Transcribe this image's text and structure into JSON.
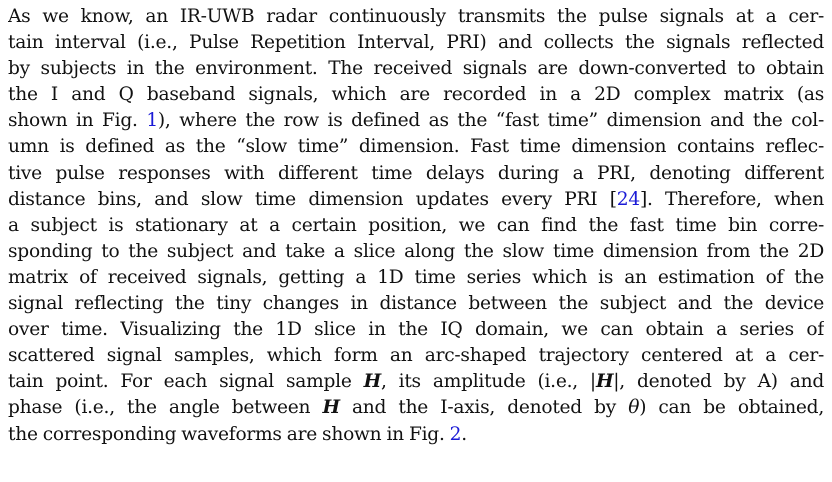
{
  "paragraph": {
    "l1": "As we know, an IR-UWB radar continuously transmits the pulse signals at a cer-",
    "l2": "tain interval (i.e., Pulse Repetition Interval, PRI) and collects the signals reflected",
    "l3": "by subjects in the environment. The received signals are down-converted to obtain",
    "l4": "the I and Q baseband signals, which are recorded in a 2D complex matrix (as",
    "l5a": "shown in Fig. ",
    "l5_ref": "1",
    "l5b": "), where the row is defined as the “fast time” dimension and the col-",
    "l6": "umn is defined as the “slow time” dimension. Fast time dimension contains reflec-",
    "l7": "tive pulse responses with different time delays during a PRI, denoting different",
    "l8a": "distance bins, and slow time dimension updates every PRI [",
    "l8_ref": "24",
    "l8b": "]. Therefore, when",
    "l9": "a subject is stationary at a certain position, we can find the fast time bin corre-",
    "l10": "sponding to the subject and take a slice along the slow time dimension from the 2D",
    "l11": "matrix of received signals, getting a 1D time series which is an estimation of the",
    "l12": "signal reflecting the tiny changes in distance between the subject and the device",
    "l13": "over time. Visualizing the 1D slice in the IQ domain, we can obtain a series of",
    "l14": "scattered signal samples, which form an arc-shaped trajectory centered at a cer-",
    "l15a": "tain point. For each signal sample ",
    "l15_H": "H",
    "l15b": ", its amplitude (i.e., |",
    "l15_H2": "H",
    "l15c": "|, denoted by A) and",
    "l16a": "phase (i.e., the angle between ",
    "l16_H": "H",
    "l16b": " and the I-axis, denoted by ",
    "l16_theta": "θ",
    "l16c": ") can be obtained,",
    "l17a": "the corresponding waveforms are shown in Fig. ",
    "l17_ref": "2",
    "l17b": "."
  }
}
